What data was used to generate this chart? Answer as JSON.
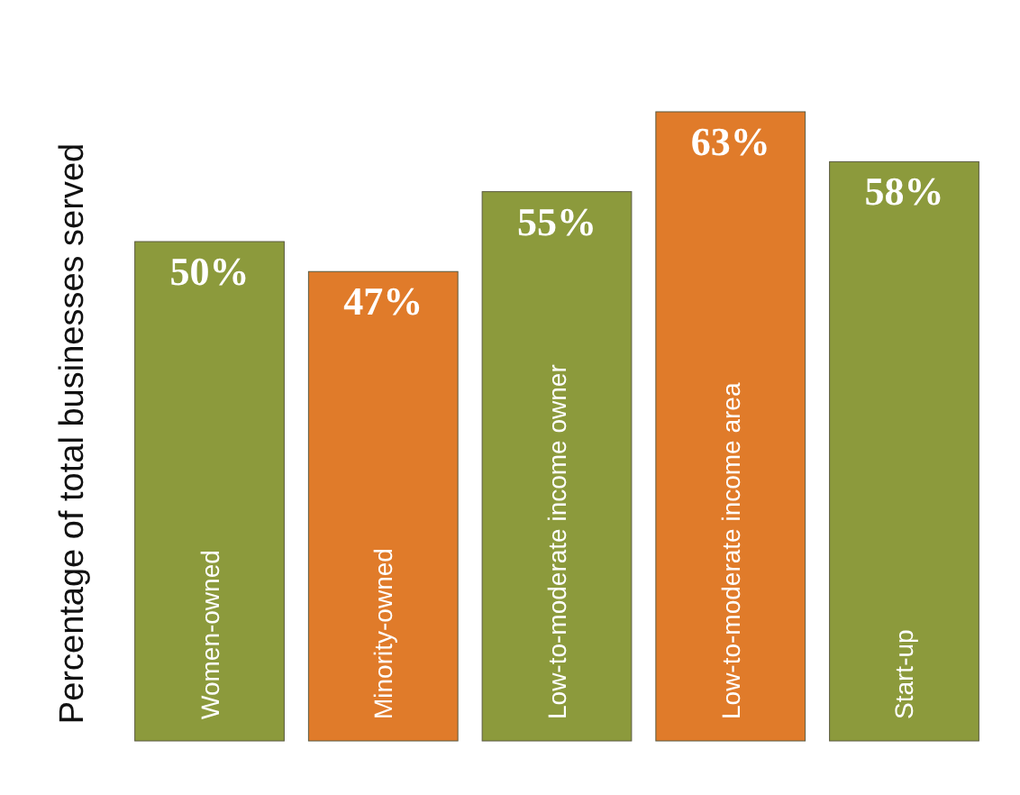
{
  "chart_data": {
    "type": "bar",
    "ylabel": "Percentage of total businesses served",
    "categories": [
      "Women-owned",
      "Minority-owned",
      "Low-to-moderate income owner",
      "Low-to-moderate income area",
      "Start-up"
    ],
    "values": [
      50,
      47,
      55,
      63,
      58
    ],
    "colors": [
      "#8c9a3c",
      "#e07b2a",
      "#8c9a3c",
      "#e07b2a",
      "#8c9a3c"
    ],
    "value_labels": [
      "50%",
      "47%",
      "55%",
      "63%",
      "58%"
    ]
  }
}
